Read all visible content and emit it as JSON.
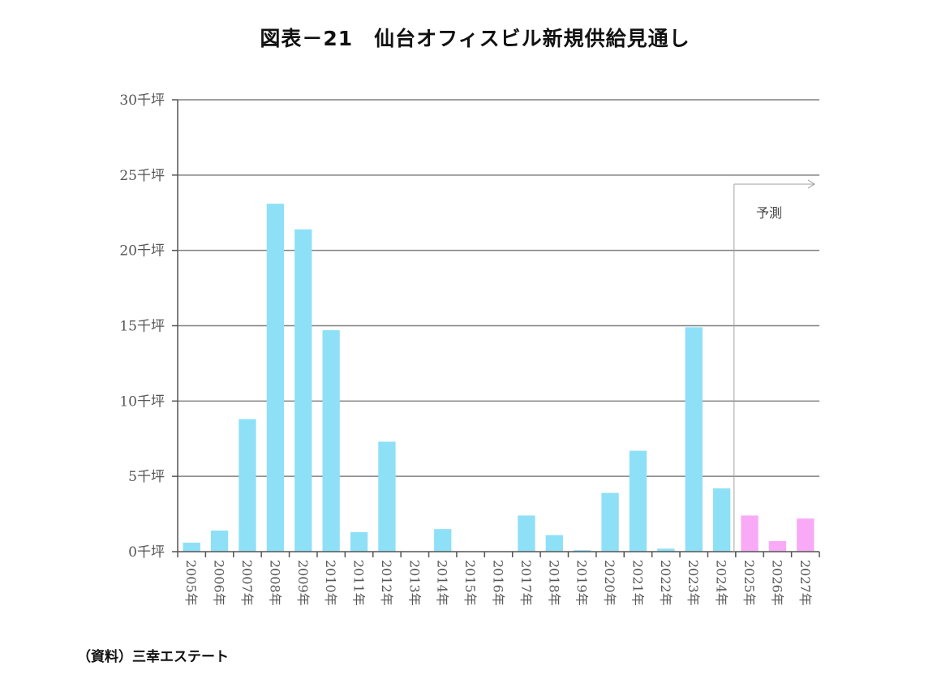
{
  "title": "図表－21　仙台オフィスビル新規供給見通し",
  "source": "（資料）三幸エステート",
  "chart_data": {
    "type": "bar",
    "title": "図表－21　仙台オフィスビル新規供給見通し",
    "categories": [
      "2005年",
      "2006年",
      "2007年",
      "2008年",
      "2009年",
      "2010年",
      "2011年",
      "2012年",
      "2013年",
      "2014年",
      "2015年",
      "2016年",
      "2017年",
      "2018年",
      "2019年",
      "2020年",
      "2021年",
      "2022年",
      "2023年",
      "2024年",
      "2025年",
      "2026年",
      "2027年"
    ],
    "values": [
      0.6,
      1.4,
      8.8,
      23.1,
      21.4,
      14.7,
      1.3,
      7.3,
      0,
      1.5,
      0,
      0,
      2.4,
      1.1,
      0.1,
      3.9,
      6.7,
      0.2,
      14.9,
      4.2,
      2.4,
      0.7,
      2.2
    ],
    "forecast_from_index": 20,
    "ylim": [
      0,
      30
    ],
    "yticks": [
      0,
      5,
      10,
      15,
      20,
      25,
      30
    ],
    "ytick_labels": [
      "0千坪",
      "5千坪",
      "10千坪",
      "15千坪",
      "20千坪",
      "25千坪",
      "30千坪"
    ],
    "ylabel": "",
    "xlabel": "",
    "grid": true,
    "annotation": "予測",
    "colors": {
      "actual": "#8ee0f7",
      "forecast": "#f9aaf6",
      "grid": "#808080",
      "axis": "#555555"
    }
  }
}
